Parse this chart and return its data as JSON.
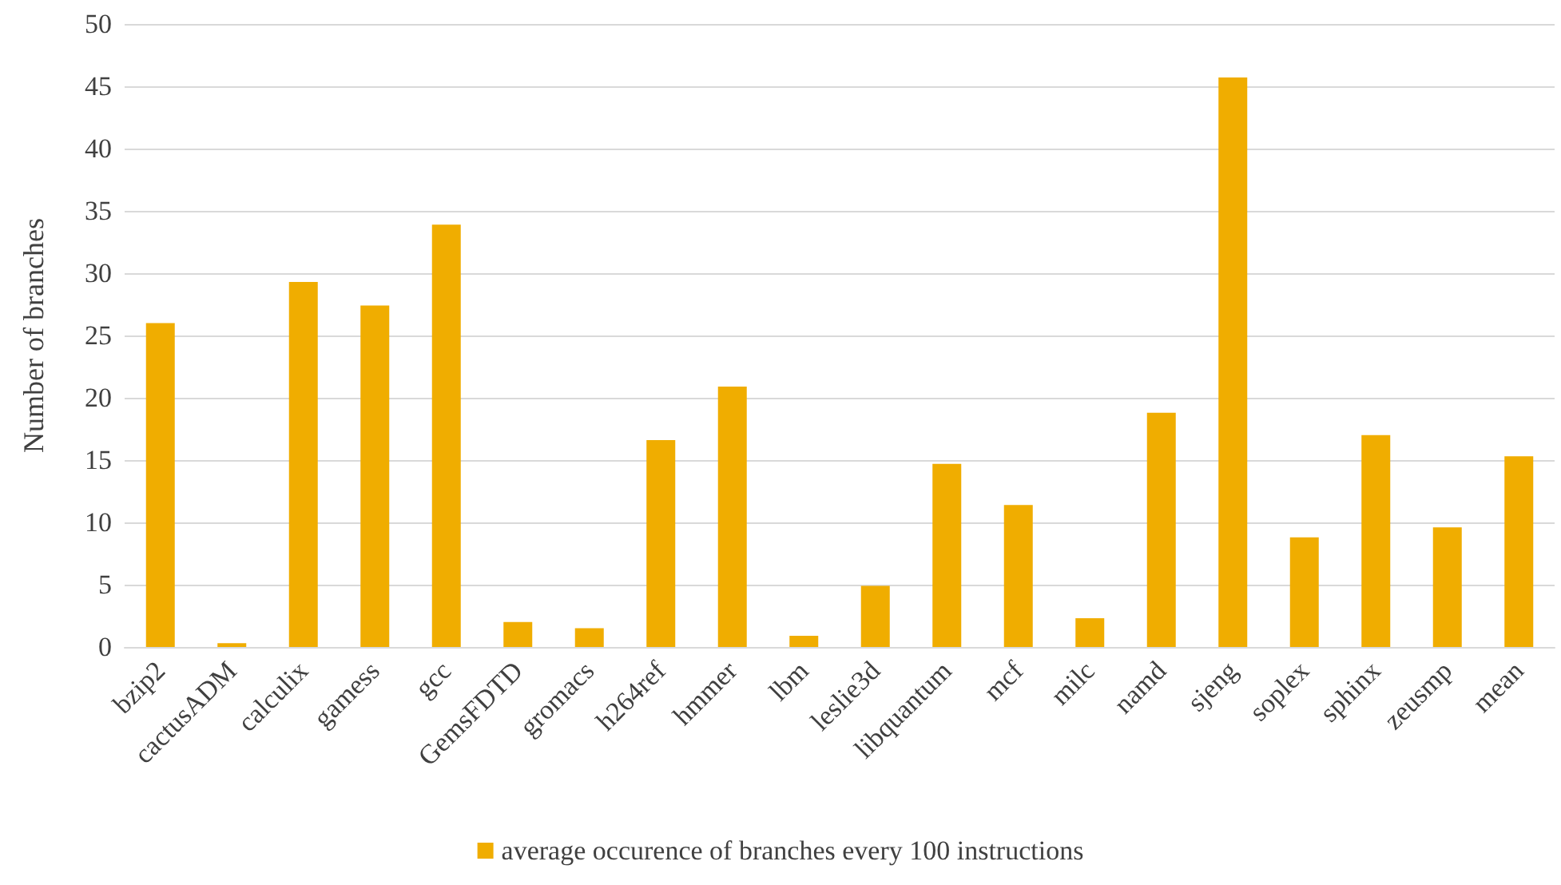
{
  "chart_data": {
    "type": "bar",
    "ylabel": "Number of branches",
    "categories": [
      "bzip2",
      "cactusADM",
      "calculix",
      "gamess",
      "gcc",
      "GemsFDTD",
      "gromacs",
      "h264ref",
      "hmmer",
      "lbm",
      "leslie3d",
      "libquantum",
      "mcf",
      "milc",
      "namd",
      "sjeng",
      "soplex",
      "sphinx",
      "zeusmp",
      "mean"
    ],
    "series": [
      {
        "name": "average occurence of branches every 100 instructions",
        "color": "#f0ad00",
        "values": [
          26.0,
          0.3,
          29.3,
          27.4,
          33.9,
          2.0,
          1.5,
          16.6,
          20.9,
          0.9,
          4.9,
          14.7,
          11.4,
          2.3,
          18.8,
          45.7,
          8.8,
          17.0,
          9.6,
          15.3
        ]
      }
    ],
    "ylim": [
      0,
      50
    ],
    "yticks": [
      0,
      5,
      10,
      15,
      20,
      25,
      30,
      35,
      40,
      45,
      50
    ],
    "grid": "y",
    "legend": "bottom"
  }
}
